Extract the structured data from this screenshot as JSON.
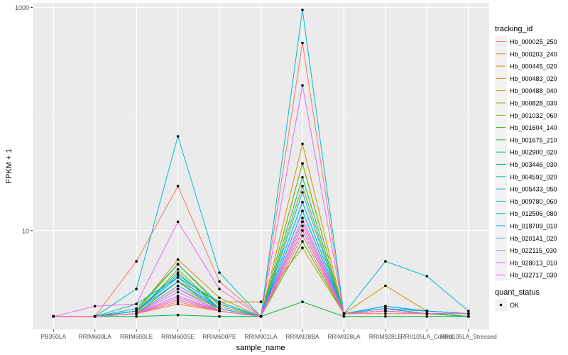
{
  "chart_data": {
    "type": "line",
    "xlabel": "sample_name",
    "ylabel": "FPKM + 1",
    "yscale": "log10",
    "ylim": [
      1.3,
      1100
    ],
    "yticks": [
      {
        "value": 10,
        "label": "10"
      },
      {
        "value": 1000,
        "label": "1000"
      }
    ],
    "grid": true,
    "legend_position": "right",
    "categories": [
      "PB350LA",
      "RRIM600LA",
      "RRIM600LE",
      "RRIM600SE",
      "RRIM600PE",
      "RRIM901LA",
      "RRIM928BA",
      "RRIM928LA",
      "RRIM928LE",
      "RRII105LA_Control",
      "RRII105LA_Stressed"
    ],
    "legend_title": "tracking_id",
    "series": [
      {
        "name": "Hb_000025_250",
        "color": "#F8766D",
        "values": [
          1.7,
          1.7,
          5.3,
          25,
          3.5,
          1.7,
          480,
          1.8,
          1.8,
          1.8,
          1.8
        ]
      },
      {
        "name": "Hb_000203_240",
        "color": "#EC8239",
        "values": [
          1.7,
          1.7,
          1.8,
          2.2,
          1.9,
          1.7,
          12,
          1.8,
          1.9,
          1.8,
          1.8
        ]
      },
      {
        "name": "Hb_000445_020",
        "color": "#DB8E00",
        "values": [
          1.7,
          1.7,
          1.9,
          5.5,
          2.5,
          1.7,
          60,
          1.8,
          3.2,
          1.9,
          1.8
        ]
      },
      {
        "name": "Hb_000483_020",
        "color": "#C79800",
        "values": [
          1.7,
          1.7,
          1.8,
          3.5,
          2.3,
          2.3,
          7,
          1.8,
          2.0,
          1.8,
          1.7
        ]
      },
      {
        "name": "Hb_000488_040",
        "color": "#AFA100",
        "values": [
          1.7,
          1.7,
          1.9,
          5.0,
          2.1,
          1.7,
          40,
          1.8,
          1.9,
          1.8,
          1.7
        ]
      },
      {
        "name": "Hb_000828_030",
        "color": "#94A900",
        "values": [
          1.7,
          1.7,
          1.8,
          3.0,
          2.0,
          1.7,
          25,
          1.8,
          1.9,
          1.8,
          1.7
        ]
      },
      {
        "name": "Hb_001032_060",
        "color": "#72B000",
        "values": [
          1.7,
          1.7,
          1.8,
          4.5,
          2.0,
          1.7,
          40,
          1.8,
          1.9,
          1.8,
          1.7
        ]
      },
      {
        "name": "Hb_001604_140",
        "color": "#3FB600",
        "values": [
          1.7,
          1.7,
          1.8,
          3.5,
          1.9,
          1.7,
          8,
          1.8,
          1.9,
          1.8,
          1.7
        ]
      },
      {
        "name": "Hb_001675_210",
        "color": "#00BA38",
        "values": [
          1.7,
          1.7,
          1.7,
          1.75,
          1.7,
          1.7,
          2.3,
          1.7,
          1.7,
          1.7,
          1.7
        ]
      },
      {
        "name": "Hb_002900_020",
        "color": "#00BE6C",
        "values": [
          1.7,
          1.7,
          1.9,
          4.2,
          2.0,
          1.7,
          30,
          1.8,
          2.0,
          1.8,
          1.7
        ]
      },
      {
        "name": "Hb_003446_030",
        "color": "#00C08E",
        "values": [
          1.7,
          1.7,
          2.0,
          5.0,
          2.2,
          1.7,
          18,
          1.8,
          2.1,
          1.9,
          1.8
        ]
      },
      {
        "name": "Hb_004592_020",
        "color": "#00C0AD",
        "values": [
          1.7,
          1.7,
          2.2,
          3.8,
          2.3,
          1.7,
          15,
          1.8,
          2.0,
          1.9,
          1.8
        ]
      },
      {
        "name": "Hb_005433_050",
        "color": "#00BDC8",
        "values": [
          1.7,
          1.7,
          3.0,
          70,
          4.2,
          1.7,
          950,
          1.8,
          5.3,
          3.9,
          1.9
        ]
      },
      {
        "name": "Hb_009780_060",
        "color": "#00B8E0",
        "values": [
          1.7,
          1.7,
          1.9,
          4.0,
          2.2,
          1.7,
          22,
          1.8,
          2.1,
          1.9,
          1.8
        ]
      },
      {
        "name": "Hb_012506_080",
        "color": "#00AFF4",
        "values": [
          1.7,
          1.7,
          1.9,
          3.8,
          2.0,
          1.7,
          18,
          1.8,
          2.1,
          1.9,
          1.8
        ]
      },
      {
        "name": "Hb_018709_010",
        "color": "#00A5FF",
        "values": [
          1.7,
          1.7,
          1.9,
          3.5,
          2.0,
          1.7,
          15,
          1.8,
          2.0,
          1.9,
          1.8
        ]
      },
      {
        "name": "Hb_020141_020",
        "color": "#5E99FF",
        "values": [
          1.7,
          1.7,
          1.8,
          3.2,
          2.0,
          1.7,
          12,
          1.8,
          2.0,
          1.8,
          1.8
        ]
      },
      {
        "name": "Hb_022115_030",
        "color": "#A88AFF",
        "values": [
          1.7,
          1.7,
          1.8,
          2.8,
          1.9,
          1.7,
          10,
          1.8,
          1.9,
          1.8,
          1.8
        ]
      },
      {
        "name": "Hb_028013_010",
        "color": "#D078FF",
        "values": [
          1.7,
          1.7,
          1.8,
          2.5,
          1.9,
          1.7,
          12,
          1.8,
          1.9,
          1.8,
          1.8
        ]
      },
      {
        "name": "Hb_032717_030",
        "color": "#EA6AF1",
        "values": [
          1.7,
          2.1,
          2.2,
          12,
          3.0,
          1.7,
          200,
          1.8,
          1.9,
          1.8,
          1.8
        ]
      },
      {
        "name": "",
        "color": "#F865DE",
        "values": [
          1.7,
          1.7,
          1.8,
          3.0,
          1.9,
          1.7,
          13,
          1.8,
          1.9,
          1.8,
          1.8
        ]
      },
      {
        "name": "",
        "color": "#FF61C4",
        "values": [
          1.7,
          1.7,
          1.8,
          2.6,
          1.9,
          1.7,
          11,
          1.8,
          1.9,
          1.8,
          1.8
        ]
      },
      {
        "name": "",
        "color": "#FF67A3",
        "values": [
          1.7,
          1.7,
          1.8,
          2.4,
          1.9,
          1.7,
          10,
          1.8,
          1.9,
          1.8,
          1.8
        ]
      },
      {
        "name": "",
        "color": "#FC717F",
        "values": [
          1.7,
          1.7,
          1.8,
          2.3,
          1.9,
          1.7,
          9,
          1.8,
          1.9,
          1.8,
          1.8
        ]
      }
    ],
    "legend_entries": [
      "Hb_000025_250",
      "Hb_000203_240",
      "Hb_000445_020",
      "Hb_000483_020",
      "Hb_000488_040",
      "Hb_000828_030",
      "Hb_001032_060",
      "Hb_001604_140",
      "Hb_001675_210",
      "Hb_002900_020",
      "Hb_003446_030",
      "Hb_004592_020",
      "Hb_005433_050",
      "Hb_009780_060",
      "Hb_012506_080",
      "Hb_018709_010",
      "Hb_020141_020",
      "Hb_022115_030",
      "Hb_028013_010",
      "Hb_032717_030"
    ],
    "legend_colors": [
      "#F8766D",
      "#EC8239",
      "#DB8E00",
      "#C79800",
      "#AFA100",
      "#94A900",
      "#72B000",
      "#3FB600",
      "#00BA38",
      "#00BE6C",
      "#00C08E",
      "#00C0AD",
      "#00BDC8",
      "#00B8E0",
      "#00AFF4",
      "#00A5FF",
      "#5E99FF",
      "#A88AFF",
      "#D078FF",
      "#EA6AF1"
    ],
    "shape_legend": {
      "title": "quant_status",
      "entries": [
        "OK"
      ]
    },
    "colors": {
      "panel": "#EBEBEB",
      "grid_major": "#FFFFFF",
      "grid_minor": "#F5F5F5",
      "point": "#000000",
      "text": "#000000",
      "tick_text": "#4D4D4D"
    }
  }
}
